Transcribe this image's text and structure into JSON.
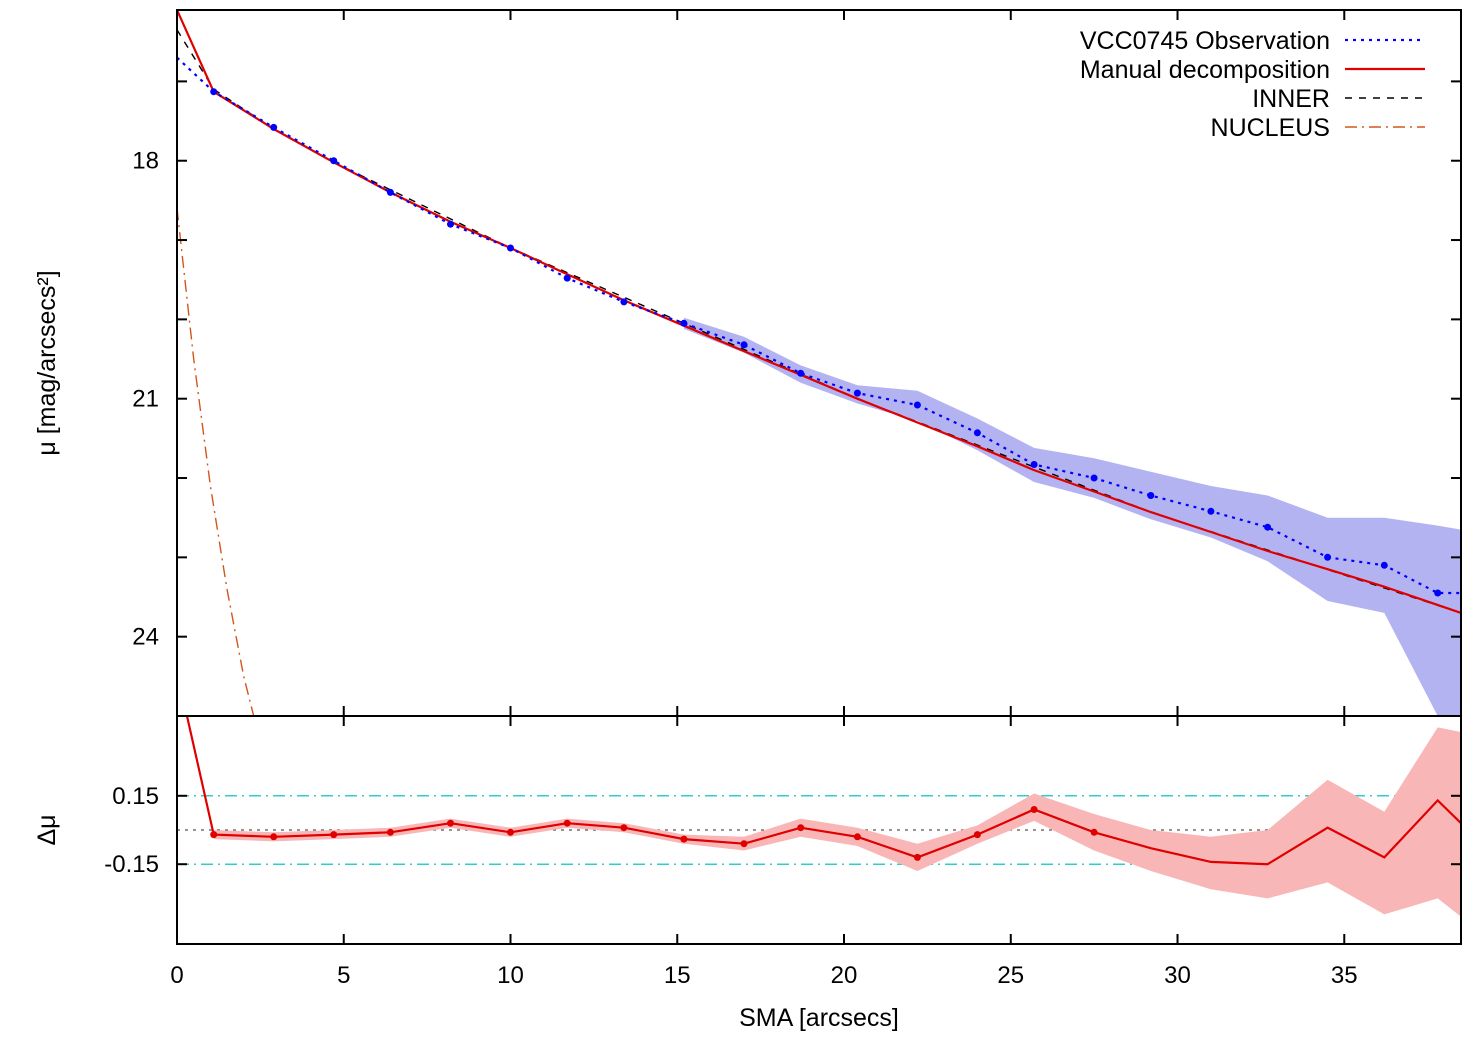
{
  "chart_data": [
    {
      "panel": "profile",
      "type": "line",
      "title": "",
      "xlabel": "SMA [arcsecs]",
      "ylabel": "μ [mag/arcsecs²]",
      "xlim": [
        0,
        38.5
      ],
      "ylim": [
        16.1,
        25.0
      ],
      "y_inverted": true,
      "yticks": [
        18,
        21,
        24
      ],
      "ytick_labels": [
        "18",
        "21",
        "24"
      ],
      "legend_position": "top-right",
      "legend": [
        {
          "label": "VCC0745 Observation",
          "color": "#0000ff",
          "style": "dotted"
        },
        {
          "label": "Manual decomposition",
          "color": "#e00000",
          "style": "solid"
        },
        {
          "label": "INNER",
          "color": "#000000",
          "style": "dashed"
        },
        {
          "label": "NUCLEUS",
          "color": "#d2561c",
          "style": "dash-dot"
        }
      ],
      "series": [
        {
          "name": "VCC0745 Observation",
          "color": "#0000ff",
          "x": [
            0.0,
            1.1,
            2.9,
            4.7,
            6.4,
            8.2,
            10.0,
            11.7,
            13.4,
            15.2,
            17.0,
            18.7,
            20.4,
            22.2,
            24.0,
            25.7,
            27.5,
            29.2,
            31.0,
            32.7,
            34.5,
            36.2,
            37.8,
            38.5
          ],
          "y": [
            16.7,
            17.13,
            17.58,
            18.0,
            18.4,
            18.8,
            19.1,
            19.48,
            19.78,
            20.05,
            20.32,
            20.68,
            20.93,
            21.08,
            21.43,
            21.83,
            22.0,
            22.22,
            22.42,
            22.62,
            23.0,
            23.1,
            23.45,
            23.45
          ],
          "band_lower": [
            null,
            null,
            null,
            null,
            null,
            null,
            null,
            null,
            null,
            19.98,
            20.22,
            20.58,
            20.83,
            20.9,
            21.25,
            21.62,
            21.75,
            21.92,
            22.1,
            22.22,
            22.5,
            22.5,
            22.6,
            22.65
          ],
          "band_upper": [
            null,
            null,
            null,
            null,
            null,
            null,
            null,
            null,
            null,
            20.12,
            20.42,
            20.8,
            21.06,
            21.28,
            21.65,
            22.05,
            22.25,
            22.52,
            22.75,
            23.05,
            23.55,
            23.7,
            25.0,
            25.0
          ],
          "markers": true
        },
        {
          "name": "Manual decomposition",
          "color": "#e00000",
          "x": [
            0.0,
            1.1,
            2.9,
            4.7,
            6.4,
            8.2,
            10.0,
            11.7,
            13.4,
            15.2,
            17.0,
            18.7,
            20.4,
            22.2,
            24.0,
            25.7,
            27.5,
            29.2,
            31.0,
            32.7,
            34.5,
            36.2,
            38.5
          ],
          "y": [
            16.1,
            17.13,
            17.6,
            18.02,
            18.4,
            18.77,
            19.1,
            19.43,
            19.76,
            20.08,
            20.4,
            20.7,
            21.0,
            21.3,
            21.6,
            21.9,
            22.17,
            22.43,
            22.68,
            22.92,
            23.15,
            23.37,
            23.7
          ]
        },
        {
          "name": "INNER",
          "color": "#000000",
          "x": [
            0.0,
            1.1,
            2.9,
            4.7,
            10.0,
            20.4,
            29.2,
            38.5
          ],
          "y": [
            16.35,
            17.1,
            17.6,
            18.02,
            19.1,
            21.0,
            22.43,
            23.7
          ]
        },
        {
          "name": "NUCLEUS",
          "color": "#d2561c",
          "x": [
            0.0,
            0.5,
            1.0,
            1.5,
            2.0,
            2.3
          ],
          "y": [
            18.6,
            20.5,
            22.1,
            23.4,
            24.5,
            25.0
          ]
        }
      ]
    },
    {
      "panel": "residuals",
      "type": "line",
      "title": "",
      "xlabel": "SMA [arcsecs]",
      "ylabel": "Δμ",
      "xlim": [
        0,
        38.5
      ],
      "ylim": [
        -0.5,
        0.5
      ],
      "yticks": [
        0.15,
        -0.15
      ],
      "ytick_labels": [
        "0.15",
        "-0.15"
      ],
      "xticks": [
        0,
        5,
        10,
        15,
        20,
        25,
        30,
        35
      ],
      "xtick_labels": [
        "0",
        "5",
        "10",
        "15",
        "20",
        "25",
        "30",
        "35"
      ],
      "reference_lines": [
        {
          "y": 0.15,
          "color": "#33cccc",
          "style": "dash-dot"
        },
        {
          "y": -0.15,
          "color": "#33cccc",
          "style": "dash-dot"
        },
        {
          "y": 0.0,
          "color": "#555555",
          "style": "dotted"
        }
      ],
      "series": [
        {
          "name": "",
          "color": "#e00000",
          "x": [
            0.3,
            1.1,
            2.9,
            4.7,
            6.4,
            8.2,
            10.0,
            11.7,
            13.4,
            15.2,
            17.0,
            18.7,
            20.4,
            22.2,
            24.0,
            25.7,
            27.5,
            29.2,
            31.0,
            32.7,
            34.5,
            36.2,
            37.8,
            38.5
          ],
          "y": [
            0.5,
            -0.02,
            -0.03,
            -0.02,
            -0.01,
            0.03,
            -0.01,
            0.03,
            0.01,
            -0.04,
            -0.06,
            0.01,
            -0.03,
            -0.12,
            -0.02,
            0.09,
            -0.01,
            -0.08,
            -0.14,
            -0.15,
            0.01,
            -0.12,
            0.13,
            0.03
          ],
          "band_lower": [
            null,
            -0.04,
            -0.05,
            -0.04,
            -0.03,
            0.01,
            -0.03,
            0.01,
            -0.01,
            -0.06,
            -0.09,
            -0.03,
            -0.07,
            -0.18,
            -0.06,
            0.04,
            -0.09,
            -0.18,
            -0.26,
            -0.3,
            -0.23,
            -0.37,
            -0.3,
            -0.38
          ],
          "band_upper": [
            null,
            0.0,
            -0.01,
            0.0,
            0.01,
            0.05,
            0.01,
            0.05,
            0.03,
            -0.02,
            -0.03,
            0.05,
            0.01,
            -0.06,
            0.02,
            0.16,
            0.07,
            0.0,
            -0.03,
            0.0,
            0.22,
            0.08,
            0.45,
            0.43
          ],
          "markers": true,
          "marker_count": 16
        }
      ]
    }
  ]
}
